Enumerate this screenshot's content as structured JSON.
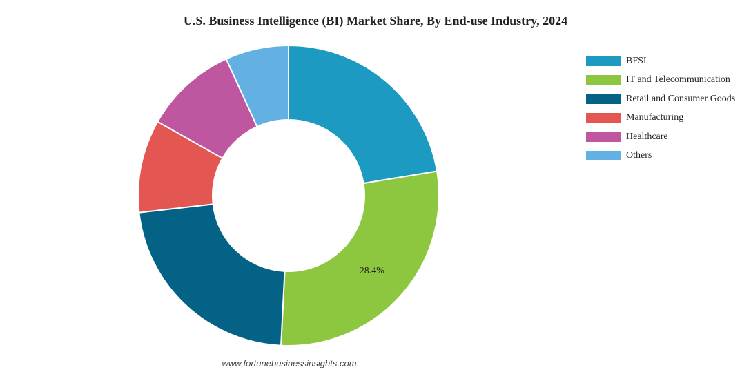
{
  "chart_data": {
    "type": "pie",
    "subtype": "donut",
    "title": "U.S. Business Intelligence (BI) Market Share, By End-use Industry, 2024",
    "categories": [
      "BFSI",
      "IT and Telecommunication",
      "Retail and Consumer Goods",
      "Manufacturing",
      "Healthcare",
      "Others"
    ],
    "values": [
      22.4,
      28.4,
      22.4,
      10.0,
      10.0,
      6.8
    ],
    "colors": [
      "#1c9ac2",
      "#8dc63f",
      "#046287",
      "#e35652",
      "#bf56a0",
      "#63b1e2"
    ],
    "labels": [
      "",
      "28.4%",
      "",
      "",
      "",
      ""
    ],
    "legend_position": "top-right"
  },
  "source": "www.fortunebusinessinsights.com"
}
